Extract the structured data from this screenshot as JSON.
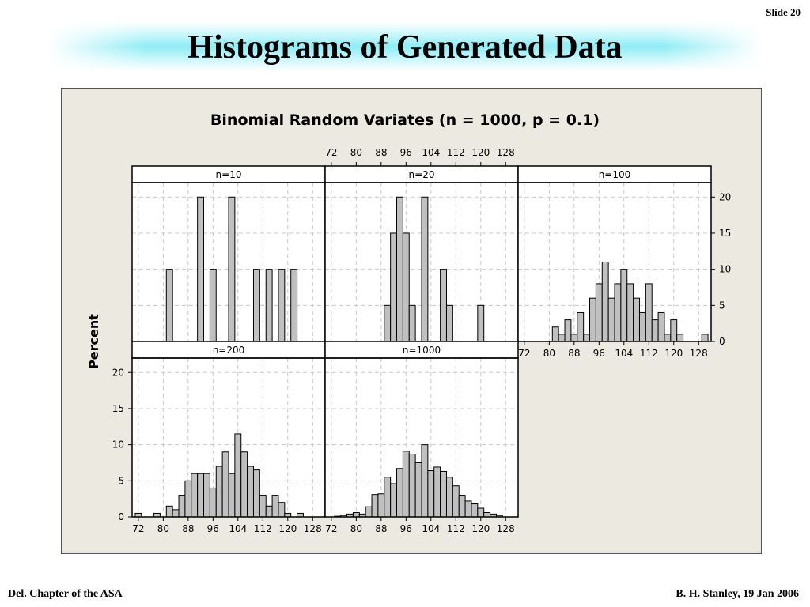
{
  "slide": {
    "number": "Slide 20",
    "title": "Histograms of Generated Data"
  },
  "footer": {
    "left": "Del. Chapter of the ASA",
    "right": "B. H. Stanley, 19 Jan 2006"
  },
  "colors": {
    "bar_fill": "#c0c0c0",
    "bar_stroke": "#000000",
    "panel_bg": "#ece9e0",
    "plot_bg": "#ffffff",
    "grid": "#c8c8c8",
    "title_glow": "#8fecf5"
  },
  "chart_data": {
    "type": "bar",
    "title": "Binomial Random Variates (n = 1000, p = 0.1)",
    "ylabel": "Percent",
    "xlim": [
      70,
      132
    ],
    "ylim": [
      0,
      22
    ],
    "xticks": [
      72,
      80,
      88,
      96,
      104,
      112,
      120,
      128
    ],
    "yticks": [
      0,
      5,
      10,
      15,
      20
    ],
    "bin_width": 2,
    "grid": true,
    "panels": [
      {
        "label": "n=10",
        "bins": [
          {
            "x": 82,
            "y": 10
          },
          {
            "x": 92,
            "y": 20
          },
          {
            "x": 96,
            "y": 10
          },
          {
            "x": 102,
            "y": 20
          },
          {
            "x": 110,
            "y": 10
          },
          {
            "x": 114,
            "y": 10
          },
          {
            "x": 118,
            "y": 10
          },
          {
            "x": 122,
            "y": 10
          }
        ]
      },
      {
        "label": "n=20",
        "bins": [
          {
            "x": 90,
            "y": 5
          },
          {
            "x": 92,
            "y": 15
          },
          {
            "x": 94,
            "y": 20
          },
          {
            "x": 96,
            "y": 15
          },
          {
            "x": 98,
            "y": 5
          },
          {
            "x": 102,
            "y": 20
          },
          {
            "x": 108,
            "y": 10
          },
          {
            "x": 110,
            "y": 5
          },
          {
            "x": 120,
            "y": 5
          }
        ]
      },
      {
        "label": "n=100",
        "bins": [
          {
            "x": 82,
            "y": 2
          },
          {
            "x": 84,
            "y": 1
          },
          {
            "x": 86,
            "y": 3
          },
          {
            "x": 88,
            "y": 1
          },
          {
            "x": 90,
            "y": 4
          },
          {
            "x": 92,
            "y": 1
          },
          {
            "x": 94,
            "y": 6
          },
          {
            "x": 96,
            "y": 8
          },
          {
            "x": 98,
            "y": 11
          },
          {
            "x": 100,
            "y": 6
          },
          {
            "x": 102,
            "y": 8
          },
          {
            "x": 104,
            "y": 10
          },
          {
            "x": 106,
            "y": 8
          },
          {
            "x": 108,
            "y": 6
          },
          {
            "x": 110,
            "y": 4
          },
          {
            "x": 112,
            "y": 8
          },
          {
            "x": 114,
            "y": 3
          },
          {
            "x": 116,
            "y": 4
          },
          {
            "x": 118,
            "y": 1
          },
          {
            "x": 120,
            "y": 3
          },
          {
            "x": 122,
            "y": 1
          },
          {
            "x": 130,
            "y": 1
          }
        ]
      },
      {
        "label": "n=200",
        "bins": [
          {
            "x": 72,
            "y": 0.5
          },
          {
            "x": 78,
            "y": 0.5
          },
          {
            "x": 82,
            "y": 1.5
          },
          {
            "x": 84,
            "y": 1
          },
          {
            "x": 86,
            "y": 3
          },
          {
            "x": 88,
            "y": 5
          },
          {
            "x": 90,
            "y": 6
          },
          {
            "x": 92,
            "y": 6
          },
          {
            "x": 94,
            "y": 6
          },
          {
            "x": 96,
            "y": 4
          },
          {
            "x": 98,
            "y": 7
          },
          {
            "x": 100,
            "y": 9
          },
          {
            "x": 102,
            "y": 6
          },
          {
            "x": 104,
            "y": 11.5
          },
          {
            "x": 106,
            "y": 9
          },
          {
            "x": 108,
            "y": 7
          },
          {
            "x": 110,
            "y": 6.5
          },
          {
            "x": 112,
            "y": 3
          },
          {
            "x": 114,
            "y": 1.5
          },
          {
            "x": 116,
            "y": 3
          },
          {
            "x": 118,
            "y": 2
          },
          {
            "x": 120,
            "y": 0.5
          },
          {
            "x": 124,
            "y": 0.5
          }
        ]
      },
      {
        "label": "n=1000",
        "bins": [
          {
            "x": 74,
            "y": 0.1
          },
          {
            "x": 76,
            "y": 0.2
          },
          {
            "x": 78,
            "y": 0.4
          },
          {
            "x": 80,
            "y": 0.6
          },
          {
            "x": 82,
            "y": 0.4
          },
          {
            "x": 84,
            "y": 1.4
          },
          {
            "x": 86,
            "y": 3.1
          },
          {
            "x": 88,
            "y": 3.2
          },
          {
            "x": 90,
            "y": 5.5
          },
          {
            "x": 92,
            "y": 4.6
          },
          {
            "x": 94,
            "y": 6.7
          },
          {
            "x": 96,
            "y": 9.1
          },
          {
            "x": 98,
            "y": 8.7
          },
          {
            "x": 100,
            "y": 7.5
          },
          {
            "x": 102,
            "y": 10
          },
          {
            "x": 104,
            "y": 6.4
          },
          {
            "x": 106,
            "y": 6.9
          },
          {
            "x": 108,
            "y": 6.3
          },
          {
            "x": 110,
            "y": 5.5
          },
          {
            "x": 112,
            "y": 4.3
          },
          {
            "x": 114,
            "y": 3
          },
          {
            "x": 116,
            "y": 2.2
          },
          {
            "x": 118,
            "y": 1.8
          },
          {
            "x": 120,
            "y": 1.2
          },
          {
            "x": 122,
            "y": 0.6
          },
          {
            "x": 124,
            "y": 0.4
          },
          {
            "x": 126,
            "y": 0.2
          }
        ]
      }
    ]
  }
}
